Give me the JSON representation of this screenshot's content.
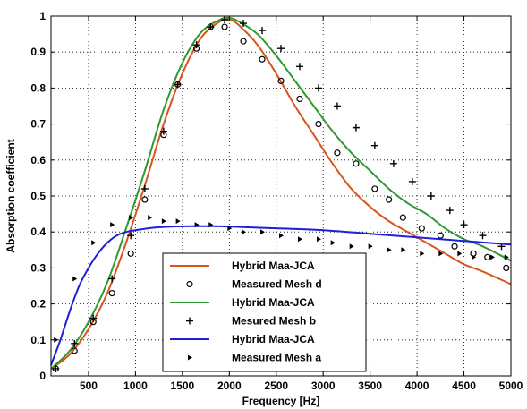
{
  "chart_data": {
    "type": "line",
    "title": "",
    "xlabel": "Frequency [Hz]",
    "ylabel": "Absorption coefficient",
    "xlim": [
      100,
      5000
    ],
    "ylim": [
      0,
      1
    ],
    "x_ticks": [
      500,
      1000,
      1500,
      2000,
      2500,
      3000,
      3500,
      4000,
      4500,
      5000
    ],
    "y_ticks": [
      0,
      0.1,
      0.2,
      0.3,
      0.4,
      0.5,
      0.6,
      0.7,
      0.8,
      0.9,
      1
    ],
    "grid": true,
    "legend_position": "bottom-center",
    "series": [
      {
        "name": "Hybrid Maa-JCA",
        "style": "line",
        "color": "#d9541e",
        "x": [
          100,
          300,
          500,
          700,
          900,
          1100,
          1300,
          1500,
          1700,
          1900,
          2000,
          2100,
          2300,
          2500,
          2700,
          2900,
          3100,
          3300,
          3500,
          3700,
          3900,
          4100,
          4300,
          4500,
          4700,
          5000
        ],
        "y": [
          0.02,
          0.06,
          0.13,
          0.23,
          0.37,
          0.53,
          0.7,
          0.84,
          0.94,
          0.985,
          0.99,
          0.975,
          0.92,
          0.84,
          0.75,
          0.67,
          0.59,
          0.52,
          0.47,
          0.43,
          0.4,
          0.37,
          0.34,
          0.31,
          0.29,
          0.255
        ]
      },
      {
        "name": "Measured Mesh d",
        "style": "marker-circle",
        "color": "#000000",
        "x": [
          150,
          350,
          550,
          750,
          950,
          1100,
          1300,
          1450,
          1650,
          1800,
          1950,
          2150,
          2350,
          2550,
          2750,
          2950,
          3150,
          3350,
          3550,
          3700,
          3850,
          4050,
          4250,
          4400,
          4600,
          4750,
          4950
        ],
        "y": [
          0.02,
          0.07,
          0.15,
          0.23,
          0.34,
          0.49,
          0.67,
          0.81,
          0.91,
          0.97,
          0.97,
          0.93,
          0.88,
          0.82,
          0.77,
          0.7,
          0.62,
          0.59,
          0.52,
          0.49,
          0.44,
          0.41,
          0.39,
          0.36,
          0.34,
          0.33,
          0.3
        ]
      },
      {
        "name": "Hybrid Maa-JCA",
        "style": "line",
        "color": "#2e9a2e",
        "x": [
          100,
          300,
          500,
          700,
          900,
          1100,
          1300,
          1500,
          1700,
          1900,
          2000,
          2100,
          2300,
          2500,
          2700,
          2900,
          3100,
          3300,
          3500,
          3700,
          3900,
          4100,
          4300,
          4500,
          4700,
          5000
        ],
        "y": [
          0.02,
          0.07,
          0.15,
          0.26,
          0.41,
          0.57,
          0.74,
          0.87,
          0.955,
          0.99,
          0.995,
          0.985,
          0.95,
          0.89,
          0.82,
          0.75,
          0.68,
          0.62,
          0.57,
          0.52,
          0.48,
          0.45,
          0.41,
          0.38,
          0.36,
          0.32
        ]
      },
      {
        "name": "Mesured Mesh b",
        "style": "marker-plus",
        "color": "#000000",
        "x": [
          150,
          350,
          550,
          750,
          950,
          1100,
          1300,
          1450,
          1650,
          1800,
          1950,
          2150,
          2350,
          2550,
          2750,
          2950,
          3150,
          3350,
          3550,
          3750,
          3950,
          4150,
          4350,
          4500,
          4700,
          4900
        ],
        "y": [
          0.02,
          0.09,
          0.16,
          0.27,
          0.39,
          0.52,
          0.68,
          0.81,
          0.92,
          0.97,
          0.99,
          0.98,
          0.96,
          0.91,
          0.86,
          0.8,
          0.75,
          0.69,
          0.64,
          0.59,
          0.54,
          0.5,
          0.46,
          0.42,
          0.39,
          0.36
        ]
      },
      {
        "name": "Hybrid Maa-JCA",
        "style": "line",
        "color": "#1f1fd9",
        "x": [
          100,
          200,
          300,
          400,
          500,
          600,
          700,
          800,
          900,
          1000,
          1200,
          1400,
          1600,
          1800,
          2000,
          2500,
          3000,
          3500,
          4000,
          4500,
          5000
        ],
        "y": [
          0.03,
          0.1,
          0.18,
          0.25,
          0.3,
          0.34,
          0.37,
          0.39,
          0.4,
          0.405,
          0.412,
          0.415,
          0.416,
          0.416,
          0.415,
          0.41,
          0.405,
          0.395,
          0.385,
          0.375,
          0.365
        ]
      },
      {
        "name": "Measured Mesh a",
        "style": "marker-triangle",
        "color": "#000000",
        "x": [
          150,
          350,
          550,
          750,
          950,
          1150,
          1300,
          1450,
          1650,
          1800,
          2000,
          2150,
          2350,
          2550,
          2750,
          2950,
          3100,
          3300,
          3500,
          3700,
          3850,
          4050,
          4250,
          4450,
          4600,
          4800,
          4950
        ],
        "y": [
          0.1,
          0.27,
          0.37,
          0.42,
          0.44,
          0.44,
          0.43,
          0.43,
          0.42,
          0.42,
          0.41,
          0.4,
          0.4,
          0.39,
          0.38,
          0.38,
          0.37,
          0.36,
          0.36,
          0.35,
          0.35,
          0.34,
          0.34,
          0.34,
          0.33,
          0.33,
          0.33
        ]
      }
    ]
  }
}
